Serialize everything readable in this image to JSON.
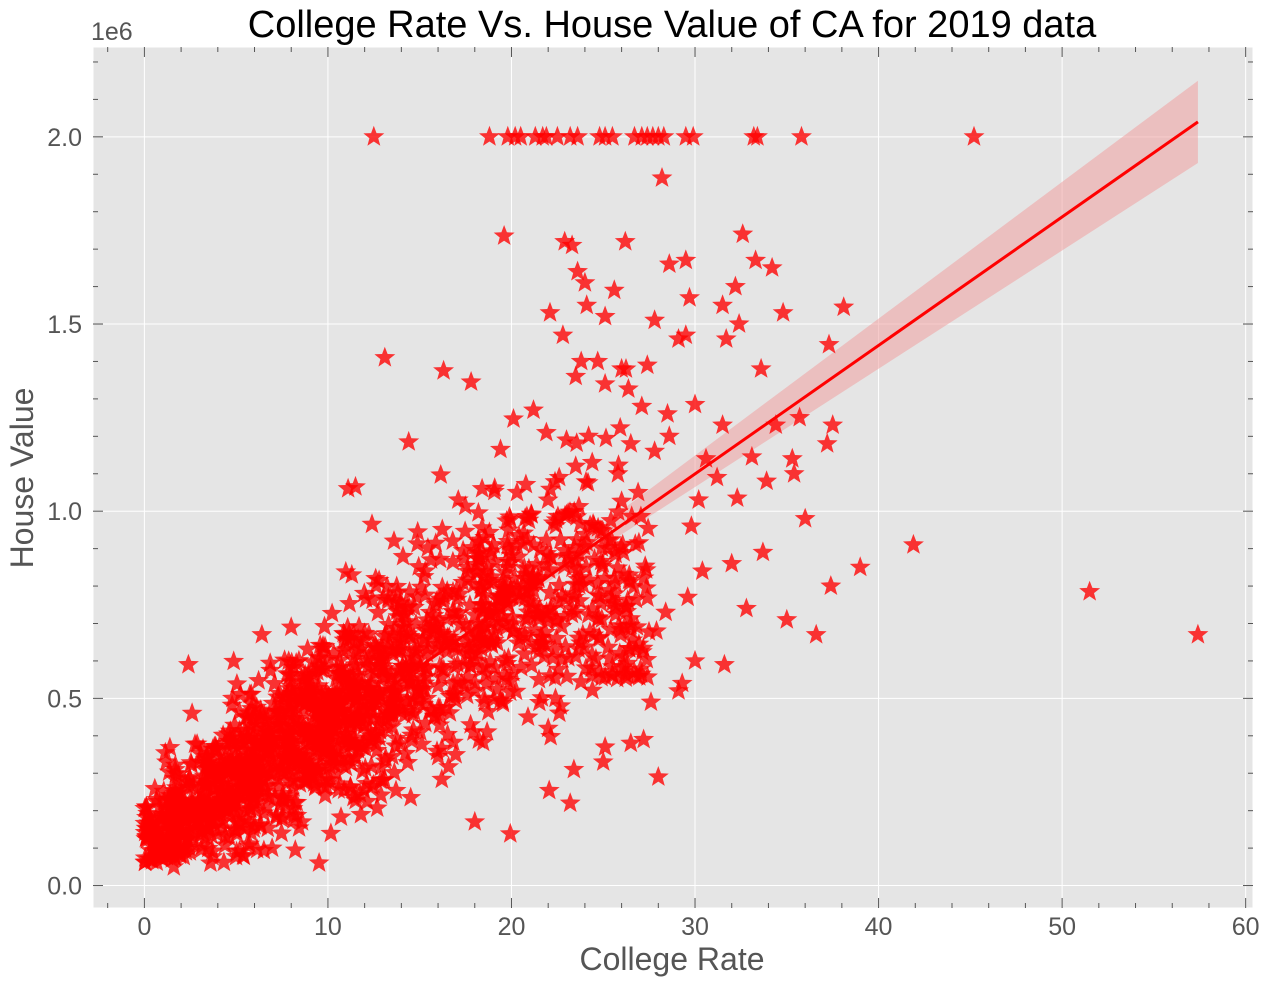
{
  "chart_data": {
    "type": "scatter",
    "title": "College Rate  Vs. House Value of CA for 2019 data",
    "xlabel": "College Rate",
    "ylabel": "House Value",
    "y_offset_label": "1e6",
    "xlim": [
      -2.8,
      60.4
    ],
    "ylim": [
      -0.06,
      2.24
    ],
    "x_ticks": [
      0,
      10,
      20,
      30,
      40,
      50,
      60
    ],
    "x_tick_labels": [
      "0",
      "10",
      "20",
      "30",
      "40",
      "50",
      "60"
    ],
    "y_ticks": [
      0.0,
      0.5,
      1.0,
      1.5,
      2.0
    ],
    "y_tick_labels": [
      "0.0",
      "0.5",
      "1.0",
      "1.5",
      "2.0"
    ],
    "y_units": "millions (1e6)",
    "marker": "star",
    "grid": true,
    "colors": {
      "background": "#e5e5e5",
      "points": "#ff0000",
      "regression_line": "#ff0000",
      "confidence_band": "#f0a0a0"
    },
    "regression": {
      "x_start": 0.0,
      "y_start": 0.07,
      "x_end": 57.4,
      "y_end": 2.04,
      "ci_start": [
        0.04,
        0.1
      ],
      "ci_mid_x": 21.0,
      "ci_mid": [
        0.78,
        0.82
      ],
      "ci_end": [
        1.93,
        2.15
      ]
    },
    "points_note": "notable (non-cluster) points; dense cluster points are generated by script",
    "points": [
      [
        12.5,
        2.0
      ],
      [
        18.8,
        2.0
      ],
      [
        19.8,
        2.0
      ],
      [
        20.2,
        2.0
      ],
      [
        20.5,
        2.0
      ],
      [
        21.3,
        2.0
      ],
      [
        21.7,
        2.0
      ],
      [
        21.9,
        2.0
      ],
      [
        22.5,
        2.0
      ],
      [
        23.2,
        2.0
      ],
      [
        23.6,
        2.0
      ],
      [
        24.8,
        2.0
      ],
      [
        25.1,
        2.0
      ],
      [
        25.5,
        2.0
      ],
      [
        26.7,
        2.0
      ],
      [
        27.1,
        2.0
      ],
      [
        27.4,
        2.0
      ],
      [
        27.7,
        2.0
      ],
      [
        28.0,
        2.0
      ],
      [
        28.3,
        2.0
      ],
      [
        29.5,
        2.0
      ],
      [
        29.9,
        2.0
      ],
      [
        33.2,
        2.0
      ],
      [
        33.4,
        2.0
      ],
      [
        35.8,
        2.0
      ],
      [
        45.2,
        2.0
      ],
      [
        28.2,
        1.89
      ],
      [
        19.6,
        1.735
      ],
      [
        22.9,
        1.72
      ],
      [
        26.2,
        1.72
      ],
      [
        32.6,
        1.74
      ],
      [
        23.3,
        1.71
      ],
      [
        28.6,
        1.66
      ],
      [
        29.5,
        1.67
      ],
      [
        33.3,
        1.67
      ],
      [
        34.2,
        1.65
      ],
      [
        23.6,
        1.64
      ],
      [
        24.0,
        1.61
      ],
      [
        32.2,
        1.6
      ],
      [
        25.6,
        1.59
      ],
      [
        29.7,
        1.57
      ],
      [
        24.1,
        1.55
      ],
      [
        31.5,
        1.55
      ],
      [
        34.8,
        1.53
      ],
      [
        38.1,
        1.545
      ],
      [
        22.1,
        1.53
      ],
      [
        25.1,
        1.52
      ],
      [
        27.8,
        1.51
      ],
      [
        32.4,
        1.5
      ],
      [
        22.8,
        1.47
      ],
      [
        29.1,
        1.46
      ],
      [
        29.5,
        1.47
      ],
      [
        31.7,
        1.46
      ],
      [
        37.3,
        1.445
      ],
      [
        13.1,
        1.41
      ],
      [
        24.7,
        1.4
      ],
      [
        23.8,
        1.4
      ],
      [
        26.0,
        1.38
      ],
      [
        16.3,
        1.375
      ],
      [
        17.8,
        1.345
      ],
      [
        23.5,
        1.36
      ],
      [
        27.4,
        1.39
      ],
      [
        33.6,
        1.38
      ],
      [
        25.1,
        1.34
      ],
      [
        21.2,
        1.27
      ],
      [
        27.1,
        1.28
      ],
      [
        28.5,
        1.26
      ],
      [
        30.0,
        1.285
      ],
      [
        31.5,
        1.23
      ],
      [
        34.4,
        1.23
      ],
      [
        35.7,
        1.25
      ],
      [
        37.5,
        1.23
      ],
      [
        14.4,
        1.185
      ],
      [
        37.2,
        1.18
      ],
      [
        19.4,
        1.165
      ],
      [
        28.6,
        1.2
      ],
      [
        30.6,
        1.14
      ],
      [
        33.1,
        1.145
      ],
      [
        11.1,
        1.06
      ],
      [
        11.5,
        1.065
      ],
      [
        31.2,
        1.09
      ],
      [
        33.9,
        1.08
      ],
      [
        35.3,
        1.14
      ],
      [
        35.4,
        1.1
      ],
      [
        30.2,
        1.03
      ],
      [
        32.3,
        1.035
      ],
      [
        36.0,
        0.98
      ],
      [
        29.8,
        0.96
      ],
      [
        41.9,
        0.91
      ],
      [
        39.0,
        0.85
      ],
      [
        37.4,
        0.8
      ],
      [
        32.0,
        0.86
      ],
      [
        33.7,
        0.89
      ],
      [
        51.5,
        0.785
      ],
      [
        57.4,
        0.67
      ],
      [
        36.6,
        0.67
      ],
      [
        35.0,
        0.71
      ],
      [
        32.8,
        0.74
      ],
      [
        31.6,
        0.59
      ],
      [
        30.0,
        0.6
      ],
      [
        29.3,
        0.54
      ],
      [
        29.1,
        0.52
      ],
      [
        27.6,
        0.49
      ],
      [
        27.2,
        0.39
      ],
      [
        26.5,
        0.38
      ],
      [
        28.0,
        0.29
      ],
      [
        25.1,
        0.37
      ],
      [
        25.0,
        0.33
      ],
      [
        23.4,
        0.31
      ],
      [
        23.2,
        0.22
      ],
      [
        6.4,
        0.67
      ],
      [
        8.0,
        0.69
      ],
      [
        2.4,
        0.59
      ],
      [
        4.8,
        0.5
      ],
      [
        2.6,
        0.46
      ],
      [
        1.2,
        0.33
      ],
      [
        0.1,
        0.21
      ],
      [
        1.6,
        0.05
      ],
      [
        3.6,
        0.06
      ],
      [
        0.3,
        0.14
      ],
      [
        16.8,
        0.92
      ],
      [
        15.3,
        0.84
      ],
      [
        12.6,
        0.82
      ],
      [
        18.4,
        1.06
      ],
      [
        17.1,
        1.03
      ],
      [
        12.4,
        0.965
      ],
      [
        13.6,
        0.92
      ],
      [
        21.1,
        0.99
      ],
      [
        20.3,
        1.05
      ],
      [
        22.6,
        1.09
      ],
      [
        23.5,
        1.12
      ],
      [
        24.4,
        1.13
      ],
      [
        25.8,
        1.1
      ],
      [
        26.9,
        1.05
      ],
      [
        18.0,
        0.17
      ],
      [
        21.5,
        0.55
      ],
      [
        22.4,
        0.5
      ],
      [
        20.9,
        0.45
      ],
      [
        22.0,
        0.42
      ],
      [
        24.8,
        0.66
      ],
      [
        25.9,
        0.62
      ],
      [
        27.9,
        0.68
      ],
      [
        28.4,
        0.73
      ],
      [
        29.6,
        0.77
      ],
      [
        30.4,
        0.84
      ],
      [
        21.9,
        1.21
      ],
      [
        23.0,
        1.19
      ],
      [
        24.2,
        1.2
      ],
      [
        26.5,
        1.18
      ],
      [
        27.8,
        1.16
      ]
    ]
  }
}
